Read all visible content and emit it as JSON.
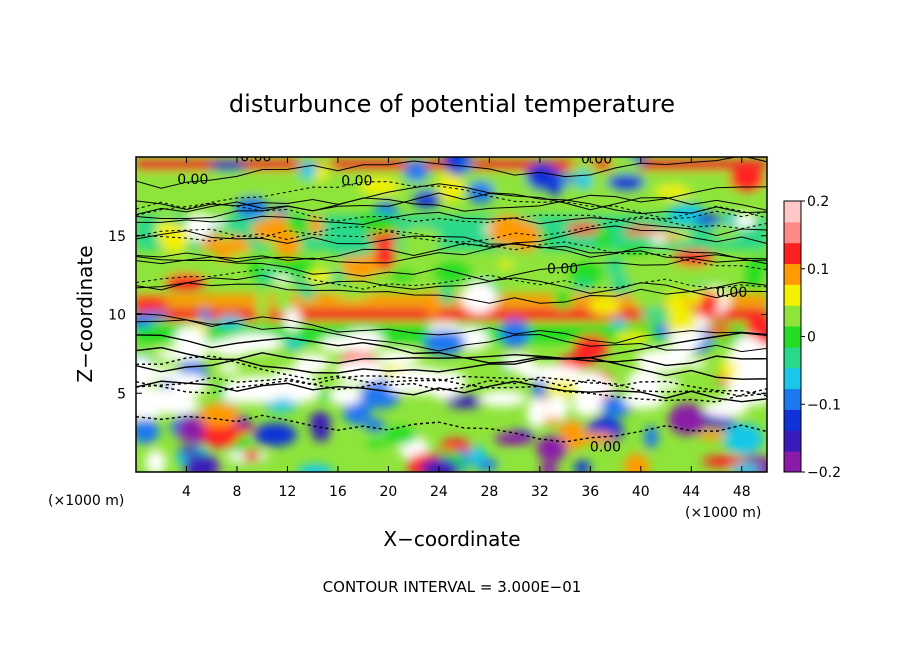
{
  "chart_data": {
    "type": "heatmap",
    "title": "disturbunce of potential temperature",
    "xlabel": "X−coordinate",
    "ylabel": "Z−coordinate",
    "x_unit_left": "(×1000 m)",
    "x_unit_right": "(×1000 m)",
    "xlim": [
      0,
      50
    ],
    "ylim": [
      0,
      20
    ],
    "x_ticks": [
      4,
      8,
      12,
      16,
      20,
      24,
      28,
      32,
      36,
      40,
      44,
      48
    ],
    "y_ticks": [
      5,
      10,
      15
    ],
    "colorbar": {
      "ticks": [
        {
          "value": 0.2,
          "label": "0.2"
        },
        {
          "value": 0.1,
          "label": "0.1"
        },
        {
          "value": 0,
          "label": "0"
        },
        {
          "value": -0.1,
          "label": "−0.1"
        },
        {
          "value": -0.2,
          "label": "−0.2"
        }
      ],
      "range": [
        -0.2,
        0.2
      ],
      "colors": [
        "#8a1aa8",
        "#3a1ab8",
        "#1030d8",
        "#1a78f0",
        "#19c8e8",
        "#2ad88a",
        "#22dd22",
        "#8ee43a",
        "#f3f000",
        "#ff9a00",
        "#ff2020",
        "#ff8888",
        "#ffc8c8"
      ]
    },
    "contour_labels": [
      {
        "x": 17.5,
        "z": 18.2,
        "text": "0.00"
      },
      {
        "x": 4.5,
        "z": 18.3,
        "text": "0.00"
      },
      {
        "x": 9.5,
        "z": 19.7,
        "text": "0.00"
      },
      {
        "x": 36.5,
        "z": 19.6,
        "text": "0.00"
      },
      {
        "x": 33.8,
        "z": 12.6,
        "text": "0.00"
      },
      {
        "x": 47.2,
        "z": 11.1,
        "text": "0.00"
      },
      {
        "x": 37.2,
        "z": 1.3,
        "text": "0.00"
      }
    ],
    "contour_interval_text": "CONTOUR INTERVAL = 3.000E−01"
  }
}
